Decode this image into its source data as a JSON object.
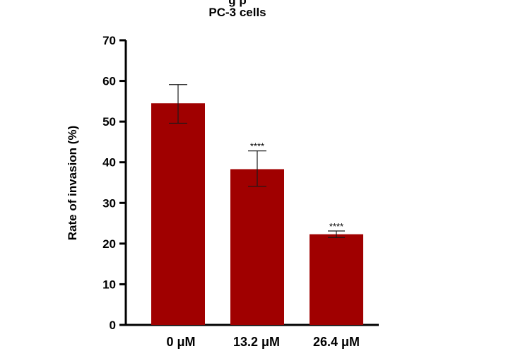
{
  "chart_data": {
    "type": "bar",
    "title_partial": "g p",
    "title": "PC-3 cells",
    "xlabel": "",
    "ylabel": "Rate of invasion (%)",
    "ylim": [
      0,
      70
    ],
    "yticks": [
      0,
      10,
      20,
      30,
      40,
      50,
      60,
      70
    ],
    "ytick_labels": [
      "0",
      "10",
      "20",
      "30",
      "40",
      "50",
      "60",
      "70"
    ],
    "categories": [
      "0 μM",
      "13.2 μM",
      "26.4 μM"
    ],
    "values": [
      54.5,
      38.3,
      22.3
    ],
    "error_low": [
      49.6,
      34.1,
      21.5
    ],
    "error_high": [
      59.1,
      42.8,
      23.1
    ],
    "significance": [
      "",
      "****",
      "****"
    ],
    "bar_color": "#a00000",
    "grid": false,
    "legend": "none"
  }
}
